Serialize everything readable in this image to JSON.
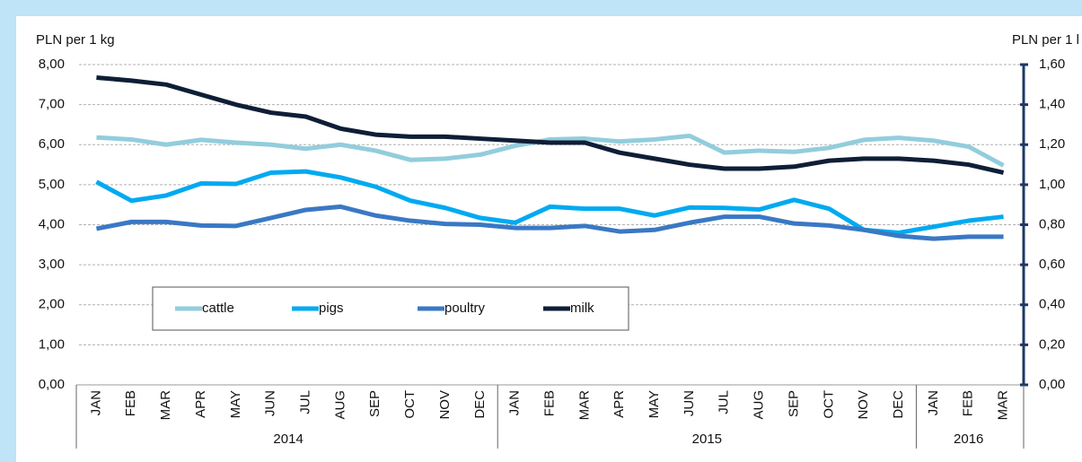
{
  "chart_data": {
    "type": "line",
    "y_label": "PLN per 1 kg",
    "y2_label": "PLN per 1 l",
    "categories": [
      "JAN",
      "FEB",
      "MAR",
      "APR",
      "MAY",
      "JUN",
      "JUL",
      "AUG",
      "SEP",
      "OCT",
      "NOV",
      "DEC",
      "JAN",
      "FEB",
      "MAR",
      "APR",
      "MAY",
      "JUN",
      "JUL",
      "AUG",
      "SEP",
      "OCT",
      "NOV",
      "DEC",
      "JAN",
      "FEB",
      "MAR"
    ],
    "x_groups": [
      {
        "label": "2014",
        "count": 12
      },
      {
        "label": "2015",
        "count": 12
      },
      {
        "label": "2016",
        "count": 3
      }
    ],
    "series": [
      {
        "name": "cattle",
        "color": "#92cddc",
        "values": [
          6.18,
          6.13,
          6.0,
          6.12,
          6.05,
          6.0,
          5.9,
          6.0,
          5.85,
          5.62,
          5.65,
          5.75,
          5.97,
          6.13,
          6.15,
          6.08,
          6.13,
          6.22,
          5.8,
          5.85,
          5.82,
          5.92,
          6.12,
          6.17,
          6.1,
          5.95,
          5.48
        ]
      },
      {
        "name": "pigs",
        "color": "#00aaf0",
        "values": [
          5.07,
          4.6,
          4.73,
          5.03,
          5.02,
          5.3,
          5.33,
          5.18,
          4.95,
          4.6,
          4.42,
          4.17,
          4.05,
          4.45,
          4.4,
          4.4,
          4.23,
          4.43,
          4.42,
          4.38,
          4.62,
          4.4,
          3.87,
          3.8,
          3.95,
          4.1,
          4.2
        ]
      },
      {
        "name": "poultry",
        "color": "#3a78c4",
        "values": [
          3.9,
          4.07,
          4.07,
          3.98,
          3.97,
          4.17,
          4.37,
          4.45,
          4.23,
          4.1,
          4.02,
          4.0,
          3.92,
          3.92,
          3.97,
          3.83,
          3.87,
          4.05,
          4.2,
          4.2,
          4.03,
          3.98,
          3.87,
          3.72,
          3.65,
          3.7,
          3.7
        ]
      },
      {
        "name": "milk",
        "color": "#0e1e36",
        "axis": "y2",
        "values": [
          1.535,
          1.52,
          1.5,
          1.45,
          1.4,
          1.36,
          1.34,
          1.28,
          1.25,
          1.24,
          1.24,
          1.23,
          1.22,
          1.21,
          1.21,
          1.16,
          1.13,
          1.1,
          1.08,
          1.08,
          1.09,
          1.12,
          1.13,
          1.13,
          1.12,
          1.1,
          1.06
        ]
      }
    ],
    "ylim": [
      0,
      8
    ],
    "yticks": [
      {
        "value": 0,
        "label": "0,00"
      },
      {
        "value": 1,
        "label": "1,00"
      },
      {
        "value": 2,
        "label": "2,00"
      },
      {
        "value": 3,
        "label": "3,00"
      },
      {
        "value": 4,
        "label": "4,00"
      },
      {
        "value": 5,
        "label": "5,00"
      },
      {
        "value": 6,
        "label": "6,00"
      },
      {
        "value": 7,
        "label": "7,00"
      },
      {
        "value": 8,
        "label": "8,00"
      }
    ],
    "y2lim": [
      0,
      1.6
    ],
    "y2ticks": [
      {
        "value": 0,
        "label": "0,00"
      },
      {
        "value": 0.2,
        "label": "0,20"
      },
      {
        "value": 0.4,
        "label": "0,40"
      },
      {
        "value": 0.6,
        "label": "0,60"
      },
      {
        "value": 0.8,
        "label": "0,80"
      },
      {
        "value": 1,
        "label": "1,00"
      },
      {
        "value": 1.2,
        "label": "1,20"
      },
      {
        "value": 1.4,
        "label": "1,40"
      },
      {
        "value": 1.6,
        "label": "1,60"
      }
    ],
    "grid": true,
    "legend": "lower left"
  }
}
